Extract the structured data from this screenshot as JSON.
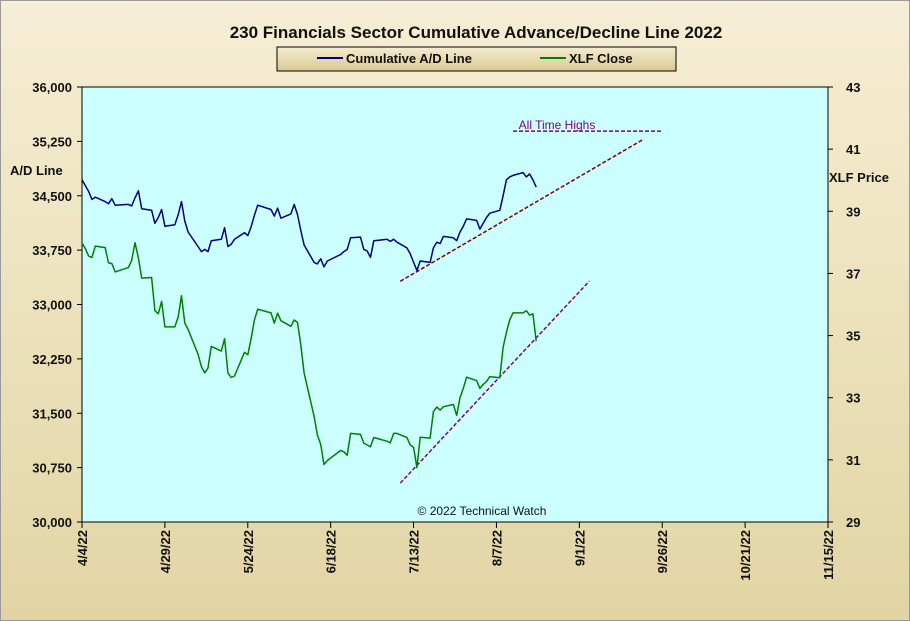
{
  "chart_data": {
    "type": "line",
    "title": "230 Financials  Sector Cumulative  Advance/Decline  Line 2022",
    "ylabel_left": "A/D Line",
    "ylabel_right": "XLF Price",
    "ylim_left": [
      30000,
      36000
    ],
    "ylim_right": [
      29,
      43
    ],
    "xlim": [
      "2022-04-04",
      "2022-11-15"
    ],
    "y_ticks_left": [
      "30,000",
      "30,750",
      "31,500",
      "32,250",
      "33,000",
      "33,750",
      "34,500",
      "35,250",
      "36,000"
    ],
    "y_ticks_right": [
      "29",
      "31",
      "33",
      "35",
      "37",
      "39",
      "41",
      "43"
    ],
    "x_ticks": [
      "4/4/22",
      "4/29/22",
      "5/24/22",
      "6/18/22",
      "7/13/22",
      "8/7/22",
      "9/1/22",
      "9/26/22",
      "10/21/22",
      "11/15/22"
    ],
    "plot_bg": "#ccffff",
    "grid": false,
    "legend_position": "top-center",
    "series": [
      {
        "name": "Cumulative A/D Line",
        "axis": "left",
        "color": "#000080",
        "points": [
          [
            "2022-04-04",
            34720
          ],
          [
            "2022-04-05",
            34640
          ],
          [
            "2022-04-06",
            34560
          ],
          [
            "2022-04-07",
            34450
          ],
          [
            "2022-04-08",
            34480
          ],
          [
            "2022-04-11",
            34420
          ],
          [
            "2022-04-12",
            34390
          ],
          [
            "2022-04-13",
            34460
          ],
          [
            "2022-04-14",
            34370
          ],
          [
            "2022-04-18",
            34380
          ],
          [
            "2022-04-19",
            34360
          ],
          [
            "2022-04-20",
            34470
          ],
          [
            "2022-04-21",
            34570
          ],
          [
            "2022-04-22",
            34320
          ],
          [
            "2022-04-25",
            34300
          ],
          [
            "2022-04-26",
            34120
          ],
          [
            "2022-04-27",
            34200
          ],
          [
            "2022-04-28",
            34310
          ],
          [
            "2022-04-29",
            34080
          ],
          [
            "2022-05-02",
            34100
          ],
          [
            "2022-05-03",
            34240
          ],
          [
            "2022-05-04",
            34420
          ],
          [
            "2022-05-05",
            34150
          ],
          [
            "2022-05-06",
            34000
          ],
          [
            "2022-05-09",
            33800
          ],
          [
            "2022-05-10",
            33730
          ],
          [
            "2022-05-11",
            33760
          ],
          [
            "2022-05-12",
            33730
          ],
          [
            "2022-05-13",
            33880
          ],
          [
            "2022-05-16",
            33900
          ],
          [
            "2022-05-17",
            34060
          ],
          [
            "2022-05-18",
            33800
          ],
          [
            "2022-05-19",
            33830
          ],
          [
            "2022-05-20",
            33900
          ],
          [
            "2022-05-23",
            33990
          ],
          [
            "2022-05-24",
            33950
          ],
          [
            "2022-05-25",
            34070
          ],
          [
            "2022-05-26",
            34230
          ],
          [
            "2022-05-27",
            34370
          ],
          [
            "2022-05-31",
            34310
          ],
          [
            "2022-06-01",
            34220
          ],
          [
            "2022-06-02",
            34330
          ],
          [
            "2022-06-03",
            34190
          ],
          [
            "2022-06-06",
            34250
          ],
          [
            "2022-06-07",
            34380
          ],
          [
            "2022-06-08",
            34240
          ],
          [
            "2022-06-09",
            34020
          ],
          [
            "2022-06-10",
            33820
          ],
          [
            "2022-06-13",
            33580
          ],
          [
            "2022-06-14",
            33560
          ],
          [
            "2022-06-15",
            33630
          ],
          [
            "2022-06-16",
            33520
          ],
          [
            "2022-06-17",
            33600
          ],
          [
            "2022-06-21",
            33690
          ],
          [
            "2022-06-22",
            33730
          ],
          [
            "2022-06-23",
            33760
          ],
          [
            "2022-06-24",
            33920
          ],
          [
            "2022-06-27",
            33930
          ],
          [
            "2022-06-28",
            33760
          ],
          [
            "2022-06-29",
            33740
          ],
          [
            "2022-06-30",
            33650
          ],
          [
            "2022-07-01",
            33880
          ],
          [
            "2022-07-05",
            33900
          ],
          [
            "2022-07-06",
            33870
          ],
          [
            "2022-07-07",
            33900
          ],
          [
            "2022-07-08",
            33860
          ],
          [
            "2022-07-11",
            33780
          ],
          [
            "2022-07-12",
            33700
          ],
          [
            "2022-07-13",
            33580
          ],
          [
            "2022-07-14",
            33470
          ],
          [
            "2022-07-15",
            33600
          ],
          [
            "2022-07-18",
            33580
          ],
          [
            "2022-07-19",
            33780
          ],
          [
            "2022-07-20",
            33860
          ],
          [
            "2022-07-21",
            33840
          ],
          [
            "2022-07-22",
            33940
          ],
          [
            "2022-07-25",
            33920
          ],
          [
            "2022-07-26",
            33880
          ],
          [
            "2022-07-27",
            34000
          ],
          [
            "2022-07-28",
            34080
          ],
          [
            "2022-07-29",
            34180
          ],
          [
            "2022-08-01",
            34160
          ],
          [
            "2022-08-02",
            34040
          ],
          [
            "2022-08-03",
            34120
          ],
          [
            "2022-08-04",
            34200
          ],
          [
            "2022-08-05",
            34260
          ],
          [
            "2022-08-08",
            34300
          ],
          [
            "2022-08-09",
            34500
          ],
          [
            "2022-08-10",
            34720
          ],
          [
            "2022-08-11",
            34760
          ],
          [
            "2022-08-12",
            34780
          ],
          [
            "2022-08-15",
            34820
          ],
          [
            "2022-08-16",
            34760
          ],
          [
            "2022-08-17",
            34800
          ],
          [
            "2022-08-18",
            34720
          ],
          [
            "2022-08-19",
            34620
          ]
        ]
      },
      {
        "name": "XLF Close",
        "axis": "right",
        "color": "#008000",
        "points": [
          [
            "2022-04-04",
            37.98
          ],
          [
            "2022-04-05",
            37.8
          ],
          [
            "2022-04-06",
            37.56
          ],
          [
            "2022-04-07",
            37.51
          ],
          [
            "2022-04-08",
            37.88
          ],
          [
            "2022-04-11",
            37.83
          ],
          [
            "2022-04-12",
            37.34
          ],
          [
            "2022-04-13",
            37.32
          ],
          [
            "2022-04-14",
            37.05
          ],
          [
            "2022-04-18",
            37.19
          ],
          [
            "2022-04-19",
            37.42
          ],
          [
            "2022-04-20",
            37.99
          ],
          [
            "2022-04-21",
            37.5
          ],
          [
            "2022-04-22",
            36.85
          ],
          [
            "2022-04-25",
            36.87
          ],
          [
            "2022-04-26",
            35.8
          ],
          [
            "2022-04-27",
            35.7
          ],
          [
            "2022-04-28",
            36.1
          ],
          [
            "2022-04-29",
            35.28
          ],
          [
            "2022-05-02",
            35.28
          ],
          [
            "2022-05-03",
            35.6
          ],
          [
            "2022-05-04",
            36.28
          ],
          [
            "2022-05-05",
            35.4
          ],
          [
            "2022-05-06",
            35.2
          ],
          [
            "2022-05-09",
            34.4
          ],
          [
            "2022-05-10",
            34.0
          ],
          [
            "2022-05-11",
            33.8
          ],
          [
            "2022-05-12",
            33.96
          ],
          [
            "2022-05-13",
            34.65
          ],
          [
            "2022-05-16",
            34.5
          ],
          [
            "2022-05-17",
            34.9
          ],
          [
            "2022-05-18",
            33.8
          ],
          [
            "2022-05-19",
            33.65
          ],
          [
            "2022-05-20",
            33.7
          ],
          [
            "2022-05-23",
            34.46
          ],
          [
            "2022-05-24",
            34.38
          ],
          [
            "2022-05-25",
            34.9
          ],
          [
            "2022-05-26",
            35.5
          ],
          [
            "2022-05-27",
            35.85
          ],
          [
            "2022-05-31",
            35.73
          ],
          [
            "2022-06-01",
            35.4
          ],
          [
            "2022-06-02",
            35.72
          ],
          [
            "2022-06-03",
            35.48
          ],
          [
            "2022-06-06",
            35.3
          ],
          [
            "2022-06-07",
            35.5
          ],
          [
            "2022-06-08",
            35.42
          ],
          [
            "2022-06-09",
            34.7
          ],
          [
            "2022-06-10",
            33.8
          ],
          [
            "2022-06-13",
            32.4
          ],
          [
            "2022-06-14",
            31.8
          ],
          [
            "2022-06-15",
            31.5
          ],
          [
            "2022-06-16",
            30.85
          ],
          [
            "2022-06-17",
            30.98
          ],
          [
            "2022-06-21",
            31.3
          ],
          [
            "2022-06-22",
            31.26
          ],
          [
            "2022-06-23",
            31.15
          ],
          [
            "2022-06-24",
            31.85
          ],
          [
            "2022-06-27",
            31.82
          ],
          [
            "2022-06-28",
            31.54
          ],
          [
            "2022-06-29",
            31.48
          ],
          [
            "2022-06-30",
            31.42
          ],
          [
            "2022-07-01",
            31.72
          ],
          [
            "2022-07-05",
            31.6
          ],
          [
            "2022-07-06",
            31.55
          ],
          [
            "2022-07-07",
            31.85
          ],
          [
            "2022-07-08",
            31.85
          ],
          [
            "2022-07-11",
            31.72
          ],
          [
            "2022-07-12",
            31.48
          ],
          [
            "2022-07-13",
            31.4
          ],
          [
            "2022-07-14",
            30.75
          ],
          [
            "2022-07-15",
            31.73
          ],
          [
            "2022-07-18",
            31.7
          ],
          [
            "2022-07-19",
            32.55
          ],
          [
            "2022-07-20",
            32.7
          ],
          [
            "2022-07-21",
            32.6
          ],
          [
            "2022-07-22",
            32.71
          ],
          [
            "2022-07-25",
            32.78
          ],
          [
            "2022-07-26",
            32.43
          ],
          [
            "2022-07-27",
            33.0
          ],
          [
            "2022-07-28",
            33.3
          ],
          [
            "2022-07-29",
            33.66
          ],
          [
            "2022-08-01",
            33.55
          ],
          [
            "2022-08-02",
            33.3
          ],
          [
            "2022-08-03",
            33.43
          ],
          [
            "2022-08-04",
            33.52
          ],
          [
            "2022-08-05",
            33.68
          ],
          [
            "2022-08-08",
            33.64
          ],
          [
            "2022-08-09",
            34.62
          ],
          [
            "2022-08-10",
            35.1
          ],
          [
            "2022-08-11",
            35.5
          ],
          [
            "2022-08-12",
            35.73
          ],
          [
            "2022-08-15",
            35.73
          ],
          [
            "2022-08-16",
            35.8
          ],
          [
            "2022-08-17",
            35.66
          ],
          [
            "2022-08-18",
            35.7
          ],
          [
            "2022-08-19",
            34.82
          ]
        ]
      }
    ],
    "annotations": [
      {
        "text": "All Time Highs",
        "color": "#800080",
        "type": "horizontal-dashed",
        "axis": "right",
        "y": 41.58,
        "x_from": "2022-08-12",
        "x_to": "2022-09-26"
      },
      {
        "type": "trendline-dashed",
        "color": "#800000",
        "axis": "left",
        "from": [
          "2022-07-09",
          33320
        ],
        "to": [
          "2022-09-20",
          35270
        ]
      },
      {
        "type": "trendline-dashed",
        "color": "#800080",
        "axis": "right",
        "from": [
          "2022-07-09",
          30.25
        ],
        "to": [
          "2022-09-04",
          36.75
        ]
      }
    ],
    "copyright": "© 2022 Technical Watch"
  },
  "colors": {
    "frame_bg": "#eadfb7",
    "plot_bg": "#ccffff",
    "ad_line": "#000080",
    "xlf_line": "#008000",
    "annotation_purple": "#800080",
    "annotation_maroon": "#800000"
  }
}
